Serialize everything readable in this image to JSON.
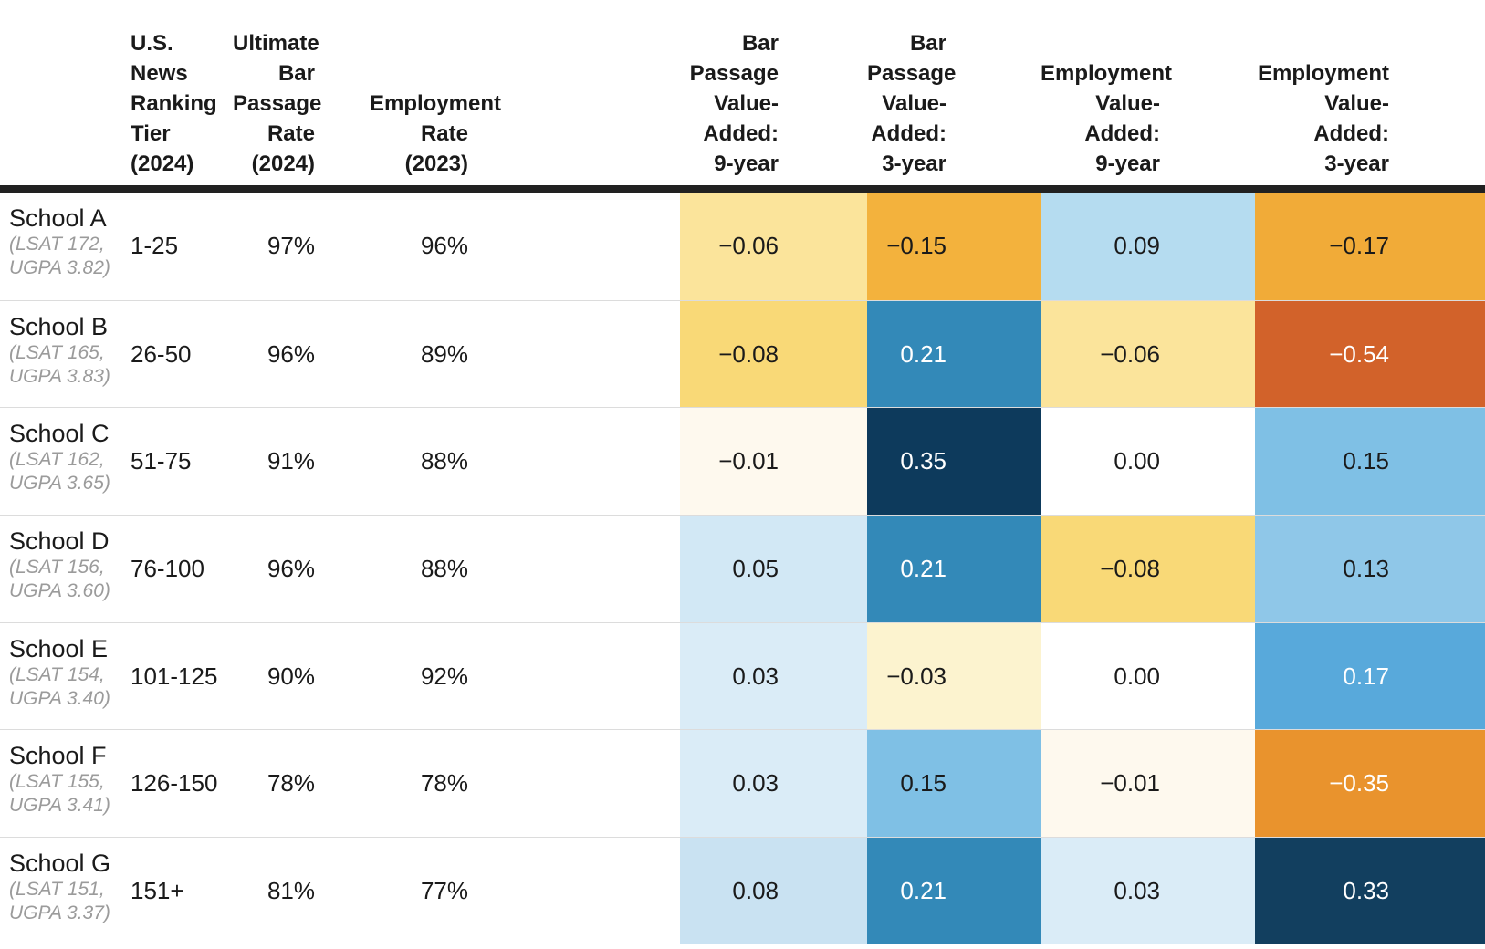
{
  "page": {
    "background": "#ffffff"
  },
  "style": {
    "header_rule_color": "#212121",
    "row_divider_color": "#dcdcdc",
    "subtext_color": "#9b9b9b",
    "dark_text": "#1a1a1a",
    "light_text": "#ffffff"
  },
  "headers": {
    "school": "",
    "tier": "U.S.\nNews\nRanking\nTier\n(2024)",
    "bar_rate": "Ultimate\nBar\nPassage\nRate\n(2024)",
    "emp_rate": "Employment\nRate (2023)",
    "bp9": "Bar\nPassage\nValue-\nAdded:\n9-year",
    "bp3": "Bar\nPassage\nValue-\nAdded:\n3-year",
    "emp9": "Employment\nValue-\nAdded:\n9-year",
    "emp3": "Employment\nValue-\nAdded:\n3-year"
  },
  "rows": [
    {
      "school": "School A",
      "stats": "(LSAT 172,\nUGPA 3.82)",
      "tier": "1-25",
      "bar_rate": "97%",
      "emp_rate": "96%",
      "bp9": {
        "value": "−0.06",
        "bg": "#FBE49B",
        "fg": "#1a1a1a"
      },
      "bp3": {
        "value": "−0.15",
        "bg": "#F3B23D",
        "fg": "#1a1a1a"
      },
      "emp9": {
        "value": "0.09",
        "bg": "#B5DCF0",
        "fg": "#1a1a1a"
      },
      "emp3": {
        "value": "−0.17",
        "bg": "#F1AB38",
        "fg": "#1a1a1a"
      }
    },
    {
      "school": "School B",
      "stats": "(LSAT 165,\nUGPA 3.83)",
      "tier": "26-50",
      "bar_rate": "96%",
      "emp_rate": "89%",
      "bp9": {
        "value": "−0.08",
        "bg": "#F9D977",
        "fg": "#1a1a1a"
      },
      "bp3": {
        "value": "0.21",
        "bg": "#3389B8",
        "fg": "#ffffff"
      },
      "emp9": {
        "value": "−0.06",
        "bg": "#FBE49B",
        "fg": "#1a1a1a"
      },
      "emp3": {
        "value": "−0.54",
        "bg": "#D2622A",
        "fg": "#ffffff"
      }
    },
    {
      "school": "School C",
      "stats": "(LSAT 162,\nUGPA 3.65)",
      "tier": "51-75",
      "bar_rate": "91%",
      "emp_rate": "88%",
      "bp9": {
        "value": "−0.01",
        "bg": "#FEF9EE",
        "fg": "#1a1a1a"
      },
      "bp3": {
        "value": "0.35",
        "bg": "#0D3A5C",
        "fg": "#ffffff"
      },
      "emp9": {
        "value": "0.00",
        "bg": "#FFFFFF",
        "fg": "#1a1a1a"
      },
      "emp3": {
        "value": "0.15",
        "bg": "#7FC0E5",
        "fg": "#1a1a1a"
      }
    },
    {
      "school": "School D",
      "stats": "(LSAT 156,\nUGPA 3.60)",
      "tier": "76-100",
      "bar_rate": "96%",
      "emp_rate": "88%",
      "bp9": {
        "value": "0.05",
        "bg": "#D2E8F5",
        "fg": "#1a1a1a"
      },
      "bp3": {
        "value": "0.21",
        "bg": "#3389B8",
        "fg": "#ffffff"
      },
      "emp9": {
        "value": "−0.08",
        "bg": "#F9D977",
        "fg": "#1a1a1a"
      },
      "emp3": {
        "value": "0.13",
        "bg": "#8FC7E8",
        "fg": "#1a1a1a"
      }
    },
    {
      "school": "School E",
      "stats": "(LSAT 154,\nUGPA 3.40)",
      "tier": "101-125",
      "bar_rate": "90%",
      "emp_rate": "92%",
      "bp9": {
        "value": "0.03",
        "bg": "#DAECF7",
        "fg": "#1a1a1a"
      },
      "bp3": {
        "value": "−0.03",
        "bg": "#FCF3CF",
        "fg": "#1a1a1a"
      },
      "emp9": {
        "value": "0.00",
        "bg": "#FFFFFF",
        "fg": "#1a1a1a"
      },
      "emp3": {
        "value": "0.17",
        "bg": "#58A9DB",
        "fg": "#ffffff"
      }
    },
    {
      "school": "School F",
      "stats": "(LSAT 155,\nUGPA 3.41)",
      "tier": "126-150",
      "bar_rate": "78%",
      "emp_rate": "78%",
      "bp9": {
        "value": "0.03",
        "bg": "#DAECF7",
        "fg": "#1a1a1a"
      },
      "bp3": {
        "value": "0.15",
        "bg": "#7FC0E5",
        "fg": "#1a1a1a"
      },
      "emp9": {
        "value": "−0.01",
        "bg": "#FEF9EE",
        "fg": "#1a1a1a"
      },
      "emp3": {
        "value": "−0.35",
        "bg": "#E9932D",
        "fg": "#ffffff"
      }
    },
    {
      "school": "School G",
      "stats": "(LSAT 151,\nUGPA 3.37)",
      "tier": "151+",
      "bar_rate": "81%",
      "emp_rate": "77%",
      "bp9": {
        "value": "0.08",
        "bg": "#C9E2F2",
        "fg": "#1a1a1a"
      },
      "bp3": {
        "value": "0.21",
        "bg": "#3389B8",
        "fg": "#ffffff"
      },
      "emp9": {
        "value": "0.03",
        "bg": "#DAECF7",
        "fg": "#1a1a1a"
      },
      "emp3": {
        "value": "0.33",
        "bg": "#123F5F",
        "fg": "#ffffff"
      }
    }
  ],
  "chart_data": {
    "type": "table",
    "title": "",
    "columns": [
      "School",
      "U.S. News Ranking Tier (2024)",
      "Ultimate Bar Passage Rate (2024)",
      "Employment Rate (2023)",
      "Bar Passage Value-Added: 9-year",
      "Bar Passage Value-Added: 3-year",
      "Employment Value-Added: 9-year",
      "Employment Value-Added: 3-year"
    ],
    "heatmap_columns": [
      "Bar Passage Value-Added: 9-year",
      "Bar Passage Value-Added: 3-year",
      "Employment Value-Added: 9-year",
      "Employment Value-Added: 3-year"
    ],
    "colormap": "diverging orange (negative) to blue (positive), white at 0",
    "rows": [
      {
        "school": "School A",
        "lsat": 172,
        "ugpa": 3.82,
        "tier": "1-25",
        "bar_rate_pct": 97,
        "emp_rate_pct": 96,
        "bp_va_9yr": -0.06,
        "bp_va_3yr": -0.15,
        "emp_va_9yr": 0.09,
        "emp_va_3yr": -0.17
      },
      {
        "school": "School B",
        "lsat": 165,
        "ugpa": 3.83,
        "tier": "26-50",
        "bar_rate_pct": 96,
        "emp_rate_pct": 89,
        "bp_va_9yr": -0.08,
        "bp_va_3yr": 0.21,
        "emp_va_9yr": -0.06,
        "emp_va_3yr": -0.54
      },
      {
        "school": "School C",
        "lsat": 162,
        "ugpa": 3.65,
        "tier": "51-75",
        "bar_rate_pct": 91,
        "emp_rate_pct": 88,
        "bp_va_9yr": -0.01,
        "bp_va_3yr": 0.35,
        "emp_va_9yr": 0.0,
        "emp_va_3yr": 0.15
      },
      {
        "school": "School D",
        "lsat": 156,
        "ugpa": 3.6,
        "tier": "76-100",
        "bar_rate_pct": 96,
        "emp_rate_pct": 88,
        "bp_va_9yr": 0.05,
        "bp_va_3yr": 0.21,
        "emp_va_9yr": -0.08,
        "emp_va_3yr": 0.13
      },
      {
        "school": "School E",
        "lsat": 154,
        "ugpa": 3.4,
        "tier": "101-125",
        "bar_rate_pct": 90,
        "emp_rate_pct": 92,
        "bp_va_9yr": 0.03,
        "bp_va_3yr": -0.03,
        "emp_va_9yr": 0.0,
        "emp_va_3yr": 0.17
      },
      {
        "school": "School F",
        "lsat": 155,
        "ugpa": 3.41,
        "tier": "126-150",
        "bar_rate_pct": 78,
        "emp_rate_pct": 78,
        "bp_va_9yr": 0.03,
        "bp_va_3yr": 0.15,
        "emp_va_9yr": -0.01,
        "emp_va_3yr": -0.35
      },
      {
        "school": "School G",
        "lsat": 151,
        "ugpa": 3.37,
        "tier": "151+",
        "bar_rate_pct": 81,
        "emp_rate_pct": 77,
        "bp_va_9yr": 0.08,
        "bp_va_3yr": 0.21,
        "emp_va_9yr": 0.03,
        "emp_va_3yr": 0.33
      }
    ]
  }
}
